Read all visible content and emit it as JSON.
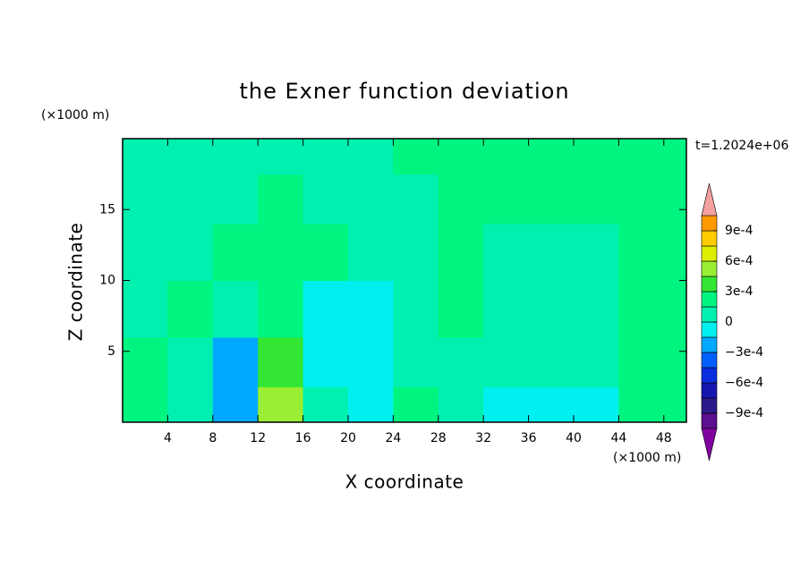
{
  "chart_data": {
    "type": "contour",
    "title": "the Exner function deviation",
    "x_label": "X coordinate",
    "y_label": "Z coordinate",
    "x_unit": "(×1000 m)",
    "y_unit": "(×1000 m)",
    "annotation": "t=1.2024e+06",
    "xlim": [
      0,
      50
    ],
    "ylim": [
      0,
      20
    ],
    "xticks": [
      4,
      8,
      12,
      16,
      20,
      24,
      28,
      32,
      36,
      40,
      44,
      48
    ],
    "yticks": [
      5,
      10,
      15
    ],
    "x": [
      2,
      6,
      10,
      14,
      18,
      22,
      26,
      30,
      34,
      38,
      42,
      46
    ],
    "y": [
      1,
      4,
      8,
      12,
      16,
      19
    ],
    "z": [
      [
        0.0002,
        5e-05,
        -0.0002,
        0.0005,
        5e-05,
        -5e-05,
        0.0002,
        5e-05,
        -5e-05,
        -0.0001,
        -0.0001,
        0.0002
      ],
      [
        0.0002,
        0.0001,
        -0.0002,
        0.0003,
        -0.0001,
        -5e-05,
        5e-05,
        0.0001,
        5e-05,
        5e-05,
        0.0001,
        0.0002
      ],
      [
        5e-05,
        0.0002,
        5e-05,
        0.0002,
        -0.0001,
        -5e-05,
        5e-05,
        0.0002,
        5e-05,
        5e-05,
        5e-05,
        0.0002
      ],
      [
        5e-05,
        5e-05,
        0.0002,
        0.0002,
        0.0002,
        5e-05,
        5e-05,
        0.0002,
        5e-05,
        5e-05,
        5e-05,
        0.0002
      ],
      [
        5e-05,
        5e-05,
        5e-05,
        0.0002,
        5e-05,
        5e-05,
        5e-05,
        0.0002,
        0.0002,
        0.0002,
        0.0002,
        0.0002
      ],
      [
        5e-05,
        5e-05,
        5e-05,
        5e-05,
        5e-05,
        5e-05,
        0.0002,
        0.0002,
        0.0002,
        0.0002,
        0.0002,
        0.0002
      ]
    ],
    "levels": [
      -0.00105,
      -0.0009,
      -0.00075,
      -0.0006,
      -0.00045,
      -0.0003,
      -0.00015,
      0,
      0.00015,
      0.0003,
      0.00045,
      0.0006,
      0.00075,
      0.0009,
      0.00105
    ],
    "colors": [
      "#5c0f8f",
      "#2b1a8a",
      "#1515b0",
      "#0a2de0",
      "#0060ff",
      "#00a8ff",
      "#00f0f0",
      "#00f0b0",
      "#00f580",
      "#33e633",
      "#99ee33",
      "#ddee00",
      "#ffcc00",
      "#ff9900",
      "#ff4400"
    ],
    "over_color": "#f4a0a0",
    "under_color": "#8000a0",
    "colorbar_ticks": [
      {
        "value": 0.0009,
        "label": "9e-4"
      },
      {
        "value": 0.0006,
        "label": "6e-4"
      },
      {
        "value": 0.0003,
        "label": "3e-4"
      },
      0,
      {
        "value": -0.0003,
        "label": "−3e-4"
      },
      {
        "value": -0.0006,
        "label": "−6e-4"
      },
      {
        "value": -0.0009,
        "label": "−9e-4"
      }
    ]
  }
}
